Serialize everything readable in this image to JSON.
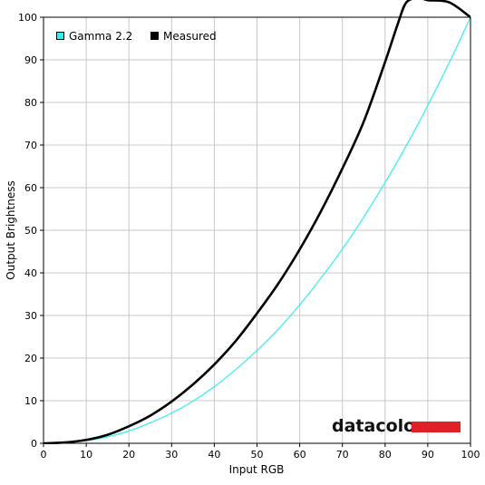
{
  "chart_data": {
    "type": "line",
    "xlabel": "Input RGB",
    "ylabel": "Output Brightness",
    "xlim": [
      0,
      100
    ],
    "ylim": [
      0,
      100
    ],
    "x_ticks": [
      0,
      10,
      20,
      30,
      40,
      50,
      60,
      70,
      80,
      90,
      100
    ],
    "y_ticks": [
      0,
      10,
      20,
      30,
      40,
      50,
      60,
      70,
      80,
      90,
      100
    ],
    "grid": true,
    "legend_position": "top-left",
    "series": [
      {
        "name": "Gamma 2.2",
        "color": "#33eeee",
        "x": [
          0,
          5,
          10,
          15,
          20,
          25,
          30,
          35,
          40,
          45,
          50,
          55,
          60,
          65,
          70,
          75,
          80,
          85,
          90,
          95,
          100
        ],
        "y": [
          0,
          0.1,
          0.6,
          1.5,
          2.9,
          4.8,
          7.1,
          9.9,
          13.3,
          17.3,
          21.8,
          26.8,
          32.5,
          38.8,
          45.6,
          53.1,
          61.2,
          69.9,
          79.3,
          89.3,
          100
        ]
      },
      {
        "name": "Measured",
        "color": "#000000",
        "x": [
          0,
          5,
          10,
          15,
          20,
          25,
          30,
          35,
          40,
          45,
          50,
          55,
          60,
          65,
          70,
          75,
          80,
          83,
          85,
          88,
          90,
          95,
          100
        ],
        "y": [
          0,
          0.2,
          0.8,
          2.0,
          4.0,
          6.5,
          9.8,
          13.8,
          18.5,
          24.0,
          30.5,
          37.5,
          45.5,
          54.5,
          64.5,
          75.5,
          89.5,
          98.5,
          103.5,
          104.5,
          104.0,
          103.5,
          100
        ]
      }
    ]
  },
  "logo": {
    "text": "datacolor",
    "bar_color": "#e02027"
  }
}
